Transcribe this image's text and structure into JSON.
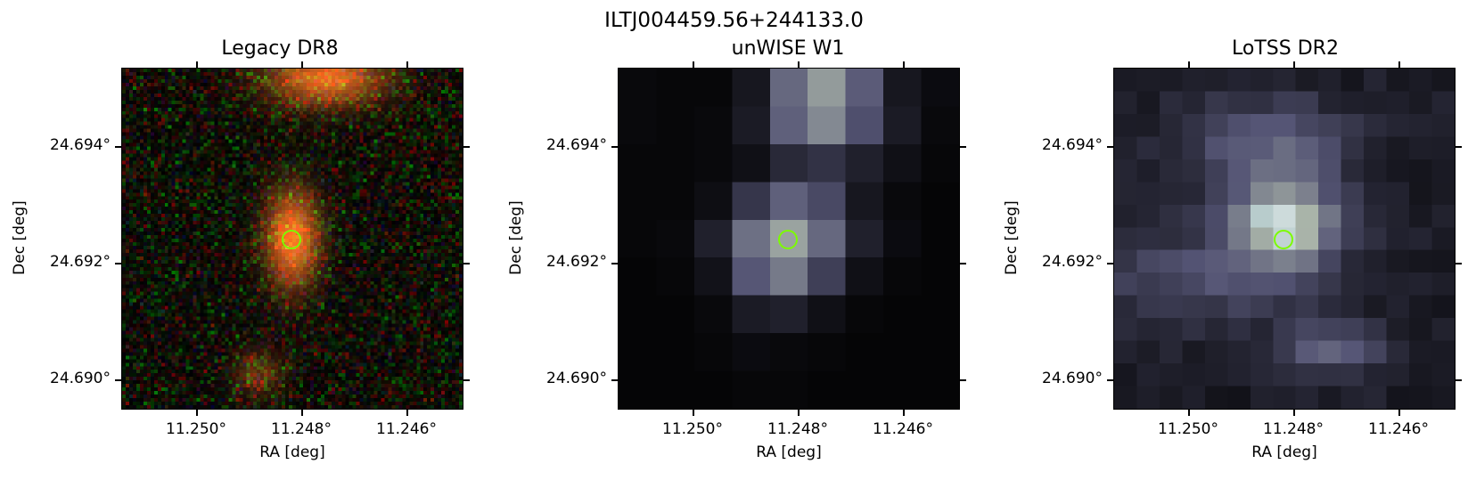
{
  "figure": {
    "title": "ILTJ004459.56+244133.0"
  },
  "panels": [
    {
      "title": "Legacy DR8",
      "type": "rgb-noise"
    },
    {
      "title": "unWISE W1",
      "type": "bone-coarse"
    },
    {
      "title": "LoTSS DR2",
      "type": "bone-medium"
    }
  ],
  "axes": {
    "xlabel": "RA [deg]",
    "ylabel": "Dec [deg]",
    "xticks": [
      "11.250°",
      "11.248°",
      "11.246°"
    ],
    "yticks": [
      "24.694°",
      "24.692°",
      "24.690°"
    ]
  },
  "marker": {
    "shape": "circle",
    "color": "#7CFC00"
  },
  "colors": {
    "marker": "#7CFC00",
    "frame": "#000000"
  }
}
